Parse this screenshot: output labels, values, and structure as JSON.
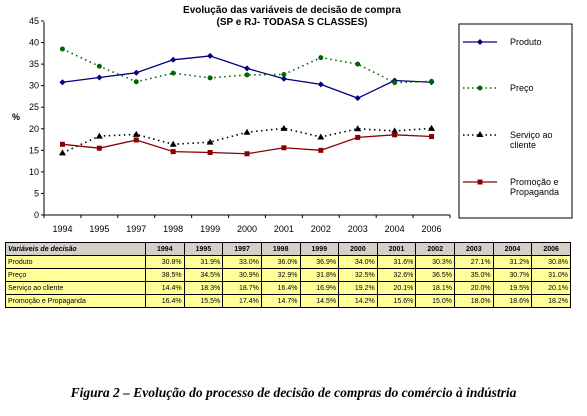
{
  "chart_data": {
    "type": "line",
    "title": "Evolução das variáveis de decisão de compra",
    "subtitle": "(SP e RJ- TODASA S CLASSES)",
    "xlabel": "",
    "ylabel": "%",
    "ylim": [
      0,
      45
    ],
    "yticks": [
      0,
      5,
      10,
      15,
      20,
      25,
      30,
      35,
      40,
      45
    ],
    "categories": [
      "1994",
      "1995",
      "1997",
      "1998",
      "1999",
      "2000",
      "2001",
      "2002",
      "2003",
      "2004",
      "2006"
    ],
    "legend_position": "right",
    "series": [
      {
        "name": "Produto",
        "values": [
          30.8,
          31.9,
          33.0,
          36.0,
          36.9,
          34.0,
          31.6,
          30.3,
          27.1,
          31.2,
          30.8
        ],
        "color": "#000080",
        "marker": "diamond",
        "line": "solid"
      },
      {
        "name": "Preço",
        "values": [
          38.5,
          34.5,
          30.9,
          32.9,
          31.8,
          32.5,
          32.6,
          36.5,
          35.0,
          30.7,
          31.0
        ],
        "color": "#006600",
        "marker": "circle",
        "line": "dotted"
      },
      {
        "name": "Serviço ao cliente",
        "values": [
          14.4,
          18.3,
          18.7,
          16.4,
          16.9,
          19.2,
          20.1,
          18.1,
          20.0,
          19.5,
          20.1
        ],
        "color": "#000000",
        "marker": "triangle",
        "line": "dotted"
      },
      {
        "name": "Promoção e Propaganda",
        "values": [
          16.4,
          15.5,
          17.4,
          14.7,
          14.5,
          14.2,
          15.6,
          15.0,
          18.0,
          18.6,
          18.2
        ],
        "color": "#8b0000",
        "marker": "square",
        "line": "solid"
      }
    ]
  },
  "legend": {
    "produto": "Produto",
    "preco": "Preço",
    "servico_line1": "Serviço ao",
    "servico_line2": "cliente",
    "promocao_line1": "Promoção e",
    "promocao_line2": "Propaganda"
  },
  "table": {
    "header_label": "Variáveis de decisão",
    "years": [
      "1994",
      "1995",
      "1997",
      "1998",
      "1999",
      "2000",
      "2001",
      "2002",
      "2003",
      "2004",
      "2006"
    ],
    "rows": [
      {
        "label": "Produto",
        "cells": [
          "30.8%",
          "31.9%",
          "33.0%",
          "36.0%",
          "36.9%",
          "34.0%",
          "31.6%",
          "30.3%",
          "27.1%",
          "31.2%",
          "30.8%"
        ]
      },
      {
        "label": "Preço",
        "cells": [
          "38.5%",
          "34.5%",
          "30.9%",
          "32.9%",
          "31.8%",
          "32.5%",
          "32.6%",
          "36.5%",
          "35.0%",
          "30.7%",
          "31.0%"
        ]
      },
      {
        "label": "Serviço ao cliente",
        "cells": [
          "14.4%",
          "18.3%",
          "18.7%",
          "16.4%",
          "16.9%",
          "19.2%",
          "20.1%",
          "18.1%",
          "20.0%",
          "19.5%",
          "20.1%"
        ]
      },
      {
        "label": "Promoção e Propaganda",
        "cells": [
          "16.4%",
          "15.5%",
          "17.4%",
          "14.7%",
          "14.5%",
          "14.2%",
          "15.6%",
          "15.0%",
          "18.0%",
          "18.6%",
          "18.2%"
        ]
      }
    ]
  },
  "caption": "Figura 2 – Evolução do processo de decisão de compras do comércio à indústria"
}
